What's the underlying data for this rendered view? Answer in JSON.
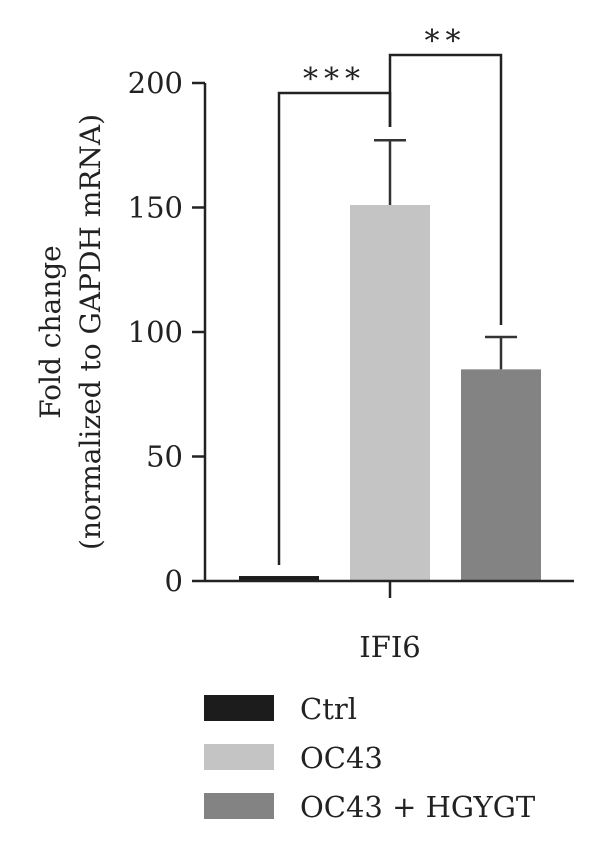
{
  "chart_data": {
    "type": "bar",
    "ylabel_line1": "Fold change",
    "ylabel_line2": "(normalized to GAPDH mRNA)",
    "category": "IFI6",
    "ylim": [
      0,
      200
    ],
    "yticks": [
      0,
      50,
      100,
      150,
      200
    ],
    "series": [
      {
        "name": "Ctrl",
        "value": 2,
        "error": 0,
        "color": "#1c1c1c"
      },
      {
        "name": "OC43",
        "value": 151,
        "error": 26,
        "color": "#c4c4c4"
      },
      {
        "name": "OC43 + HGYGT",
        "value": 85,
        "error": 13,
        "color": "#838383"
      }
    ],
    "significance": [
      {
        "from": "Ctrl",
        "to": "OC43",
        "label": "***"
      },
      {
        "from": "OC43",
        "to": "OC43 + HGYGT",
        "label": "**"
      }
    ],
    "legend_position": "bottom",
    "grid": false
  }
}
